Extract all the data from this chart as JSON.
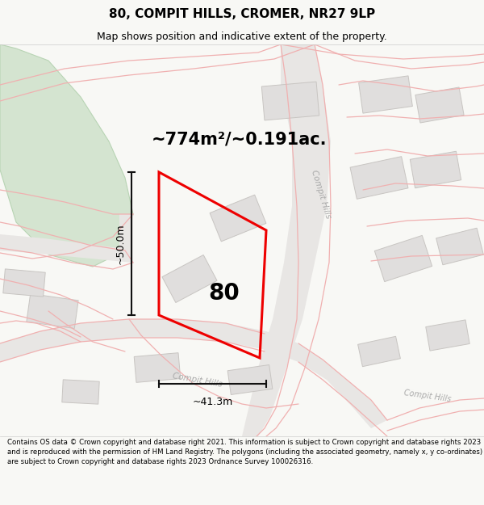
{
  "title_line1": "80, COMPIT HILLS, CROMER, NR27 9LP",
  "title_line2": "Map shows position and indicative extent of the property.",
  "area_text": "~774m²/~0.191ac.",
  "dim_vertical": "~50.0m",
  "dim_horizontal": "~41.3m",
  "label_80": "80",
  "footer_text": "Contains OS data © Crown copyright and database right 2021. This information is subject to Crown copyright and database rights 2023 and is reproduced with the permission of HM Land Registry. The polygons (including the associated geometry, namely x, y co-ordinates) are subject to Crown copyright and database rights 2023 Ordnance Survey 100026316.",
  "bg_color": "#f8f8f5",
  "map_bg": "#ffffff",
  "green_color": "#d4e4d0",
  "green_edge": "#b8d4b4",
  "road_fill": "#e8e6e4",
  "building_fill": "#e0dedd",
  "building_edge": "#c8c5c2",
  "street_pink": "#f0b0b0",
  "street_pink2": "#e89898",
  "property_color": "#ee0000",
  "dim_color": "#111111",
  "street_label_color": "#aaaaaa",
  "title_fontsize": 11,
  "subtitle_fontsize": 9,
  "area_fontsize": 15,
  "dim_fontsize": 9,
  "label_fontsize": 20,
  "footer_fontsize": 6.2
}
